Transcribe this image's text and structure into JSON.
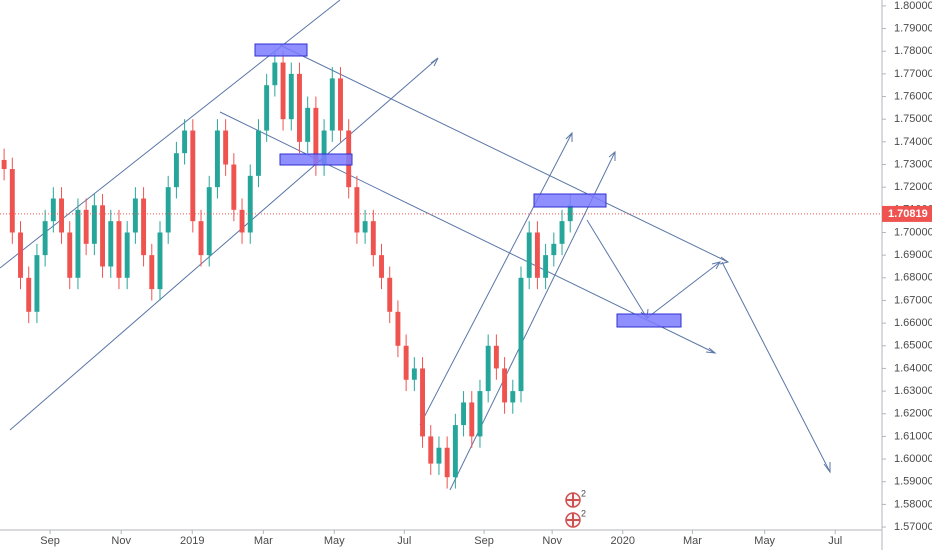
{
  "chart_data": {
    "type": "candlestick",
    "x": [
      0,
      1,
      2,
      3,
      4,
      5,
      6,
      7,
      8,
      9,
      10,
      11,
      12,
      13,
      14,
      15,
      16,
      17,
      18,
      19,
      20,
      21,
      22,
      23,
      24,
      25,
      26,
      27,
      28,
      29,
      30,
      31,
      32,
      33,
      34,
      35,
      36,
      37,
      38,
      39,
      40,
      41,
      42,
      43,
      44,
      45,
      46,
      47,
      48,
      49,
      50,
      51,
      52,
      53,
      54,
      55,
      56,
      57,
      58,
      59,
      60,
      61,
      62,
      63,
      64,
      65,
      66,
      67,
      68,
      69
    ],
    "open": [
      1.732,
      1.728,
      1.7,
      1.68,
      1.665,
      1.69,
      1.705,
      1.715,
      1.7,
      1.68,
      1.71,
      1.695,
      1.712,
      1.685,
      1.705,
      1.68,
      1.7,
      1.715,
      1.69,
      1.675,
      1.7,
      1.72,
      1.735,
      1.745,
      1.705,
      1.69,
      1.72,
      1.745,
      1.73,
      1.71,
      1.7,
      1.725,
      1.745,
      1.765,
      1.775,
      1.75,
      1.77,
      1.74,
      1.755,
      1.73,
      1.745,
      1.768,
      1.745,
      1.72,
      1.7,
      1.705,
      1.69,
      1.68,
      1.665,
      1.65,
      1.635,
      1.64,
      1.61,
      1.598,
      1.605,
      1.592,
      1.615,
      1.625,
      1.61,
      1.63,
      1.65,
      1.64,
      1.625,
      1.63,
      1.68,
      1.7,
      1.68,
      1.69,
      1.695,
      1.705
    ],
    "high": [
      1.737,
      1.733,
      1.705,
      1.685,
      1.695,
      1.71,
      1.72,
      1.72,
      1.705,
      1.715,
      1.715,
      1.717,
      1.717,
      1.71,
      1.71,
      1.705,
      1.72,
      1.72,
      1.695,
      1.705,
      1.725,
      1.74,
      1.75,
      1.75,
      1.71,
      1.725,
      1.75,
      1.75,
      1.735,
      1.715,
      1.73,
      1.75,
      1.77,
      1.78,
      1.78,
      1.775,
      1.775,
      1.76,
      1.76,
      1.75,
      1.773,
      1.773,
      1.75,
      1.725,
      1.71,
      1.71,
      1.695,
      1.685,
      1.67,
      1.655,
      1.645,
      1.645,
      1.615,
      1.61,
      1.61,
      1.62,
      1.63,
      1.63,
      1.635,
      1.655,
      1.655,
      1.645,
      1.635,
      1.685,
      1.705,
      1.705,
      1.695,
      1.7,
      1.71,
      1.717
    ],
    "low": [
      1.723,
      1.695,
      1.675,
      1.66,
      1.66,
      1.685,
      1.7,
      1.695,
      1.675,
      1.675,
      1.69,
      1.69,
      1.68,
      1.68,
      1.675,
      1.675,
      1.695,
      1.685,
      1.67,
      1.67,
      1.695,
      1.715,
      1.73,
      1.7,
      1.685,
      1.685,
      1.715,
      1.725,
      1.705,
      1.695,
      1.695,
      1.72,
      1.74,
      1.76,
      1.745,
      1.745,
      1.735,
      1.735,
      1.725,
      1.725,
      1.74,
      1.74,
      1.715,
      1.695,
      1.695,
      1.685,
      1.675,
      1.66,
      1.645,
      1.63,
      1.63,
      1.605,
      1.593,
      1.593,
      1.587,
      1.587,
      1.61,
      1.605,
      1.605,
      1.625,
      1.635,
      1.62,
      1.62,
      1.625,
      1.675,
      1.675,
      1.675,
      1.685,
      1.69,
      1.7
    ],
    "close": [
      1.728,
      1.7,
      1.68,
      1.665,
      1.69,
      1.705,
      1.715,
      1.7,
      1.68,
      1.71,
      1.695,
      1.712,
      1.685,
      1.705,
      1.68,
      1.7,
      1.715,
      1.69,
      1.675,
      1.7,
      1.72,
      1.735,
      1.745,
      1.705,
      1.69,
      1.72,
      1.745,
      1.73,
      1.71,
      1.7,
      1.725,
      1.745,
      1.765,
      1.775,
      1.75,
      1.77,
      1.74,
      1.755,
      1.73,
      1.745,
      1.768,
      1.745,
      1.72,
      1.7,
      1.705,
      1.69,
      1.68,
      1.665,
      1.65,
      1.635,
      1.64,
      1.61,
      1.598,
      1.605,
      1.592,
      1.615,
      1.625,
      1.61,
      1.63,
      1.65,
      1.64,
      1.625,
      1.63,
      1.68,
      1.7,
      1.68,
      1.69,
      1.695,
      1.705,
      1.712
    ],
    "up_color": "#26a69a",
    "down_color": "#ef5350",
    "xlim": [
      -0.5,
      107
    ],
    "xticks": [
      {
        "value": 5.6,
        "label": "Sep"
      },
      {
        "value": 14.27,
        "label": "Nov"
      },
      {
        "value": 22.93,
        "label": "2019"
      },
      {
        "value": 31.6,
        "label": "Mar"
      },
      {
        "value": 40.24,
        "label": "May"
      },
      {
        "value": 48.78,
        "label": "Jul"
      },
      {
        "value": 58.5,
        "label": "Sep"
      },
      {
        "value": 66.8,
        "label": "Nov"
      },
      {
        "value": 75.4,
        "label": "2020"
      },
      {
        "value": 83.9,
        "label": "Mar"
      },
      {
        "value": 92.7,
        "label": "May"
      },
      {
        "value": 101.3,
        "label": "Jul"
      }
    ],
    "ylim": [
      1.5687,
      1.8026
    ],
    "yticks": [
      {
        "value": 1.57,
        "label": "1.57000"
      },
      {
        "value": 1.58,
        "label": "1.58000"
      },
      {
        "value": 1.59,
        "label": "1.59000"
      },
      {
        "value": 1.6,
        "label": "1.60000"
      },
      {
        "value": 1.61,
        "label": "1.61000"
      },
      {
        "value": 1.62,
        "label": "1.62000"
      },
      {
        "value": 1.63,
        "label": "1.63000"
      },
      {
        "value": 1.64,
        "label": "1.64000"
      },
      {
        "value": 1.65,
        "label": "1.65000"
      },
      {
        "value": 1.66,
        "label": "1.66000"
      },
      {
        "value": 1.67,
        "label": "1.67000"
      },
      {
        "value": 1.68,
        "label": "1.68000"
      },
      {
        "value": 1.69,
        "label": "1.69000"
      },
      {
        "value": 1.7,
        "label": "1.70000"
      },
      {
        "value": 1.71,
        "label": "1.71000"
      },
      {
        "value": 1.72,
        "label": "1.72000"
      },
      {
        "value": 1.73,
        "label": "1.73000"
      },
      {
        "value": 1.74,
        "label": "1.74000"
      },
      {
        "value": 1.75,
        "label": "1.75000"
      },
      {
        "value": 1.76,
        "label": "1.76000"
      },
      {
        "value": 1.77,
        "label": "1.77000"
      },
      {
        "value": 1.78,
        "label": "1.78000"
      },
      {
        "value": 1.79,
        "label": "1.79000"
      },
      {
        "value": 1.8,
        "label": "1.80000"
      }
    ],
    "last_price": {
      "value": 1.70819,
      "label": "1.70819",
      "color": "#ef5350"
    },
    "event_markers": [
      "2",
      "2"
    ]
  }
}
